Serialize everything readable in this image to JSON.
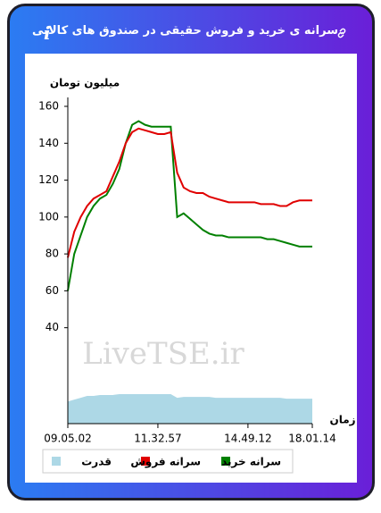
{
  "header": {
    "title": "سرانه ی خرید و فروش حقیقی در صندوق های کالایی",
    "info": "i"
  },
  "chart_data": {
    "type": "line",
    "y_label": "میلیون تومان",
    "x_label": "زمان",
    "watermark": "LiveTSE.ir",
    "categories": [
      "09.05.02",
      null,
      null,
      null,
      null,
      null,
      null,
      null,
      null,
      null,
      null,
      null,
      null,
      null,
      "11.32.57",
      null,
      null,
      null,
      null,
      null,
      null,
      null,
      null,
      null,
      null,
      null,
      null,
      null,
      "14.49.12",
      null,
      null,
      null,
      null,
      null,
      null,
      null,
      null,
      null,
      "18.01.14"
    ],
    "ylim": [
      -12,
      160
    ],
    "yticks": [
      40,
      60,
      80,
      100,
      120,
      140,
      160
    ],
    "series": [
      {
        "name": "سرانه خرید",
        "color": "#008000",
        "values": [
          60,
          80,
          90,
          100,
          106,
          110,
          112,
          118,
          126,
          140,
          150,
          152,
          150,
          149,
          149,
          149,
          149,
          100,
          102,
          99,
          96,
          93,
          91,
          90,
          90,
          89,
          89,
          89,
          89,
          89,
          89,
          88,
          88,
          87,
          86,
          85,
          84,
          84,
          84
        ]
      },
      {
        "name": "سرانه فروش",
        "color": "#e00000",
        "values": [
          78,
          92,
          100,
          106,
          110,
          112,
          114,
          122,
          130,
          140,
          146,
          148,
          147,
          146,
          145,
          145,
          146,
          124,
          116,
          114,
          113,
          113,
          111,
          110,
          109,
          108,
          108,
          108,
          108,
          108,
          107,
          107,
          107,
          106,
          106,
          108,
          109,
          109,
          109
        ]
      },
      {
        "name": "قدرت",
        "color": "#add8e6",
        "type": "area",
        "values": [
          0,
          1,
          2,
          3,
          3,
          3.5,
          3.5,
          3.5,
          4,
          4,
          4,
          4,
          4,
          4,
          4,
          4,
          4,
          2,
          2.5,
          2.5,
          2.5,
          2.5,
          2.5,
          2,
          2,
          2,
          2,
          2,
          2,
          2,
          2,
          2,
          2,
          2,
          1.5,
          1.5,
          1.5,
          1.5,
          1.5
        ]
      }
    ]
  }
}
